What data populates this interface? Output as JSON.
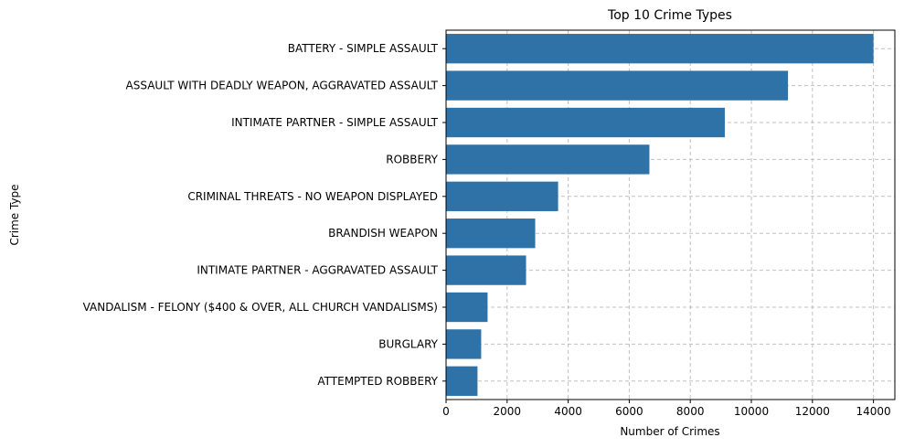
{
  "chart_data": {
    "type": "bar",
    "orientation": "horizontal",
    "title": "Top 10 Crime Types",
    "xlabel": "Number of Crimes",
    "ylabel": "Crime Type",
    "categories": [
      "BATTERY - SIMPLE ASSAULT",
      "ASSAULT WITH DEADLY WEAPON, AGGRAVATED ASSAULT",
      "INTIMATE PARTNER - SIMPLE ASSAULT",
      "ROBBERY",
      "CRIMINAL THREATS - NO WEAPON DISPLAYED",
      "BRANDISH WEAPON",
      "INTIMATE PARTNER - AGGRAVATED ASSAULT",
      "VANDALISM - FELONY ($400 & OVER, ALL CHURCH VANDALISMS)",
      "BURGLARY",
      "ATTEMPTED ROBBERY"
    ],
    "values": [
      14000,
      11200,
      9130,
      6660,
      3670,
      2920,
      2620,
      1360,
      1150,
      1030
    ],
    "xlim": [
      0,
      14700
    ],
    "xticks": [
      "0",
      "2000",
      "4000",
      "6000",
      "8000",
      "10000",
      "12000",
      "14000"
    ],
    "grid": true,
    "bar_color": "#2e72a8"
  }
}
